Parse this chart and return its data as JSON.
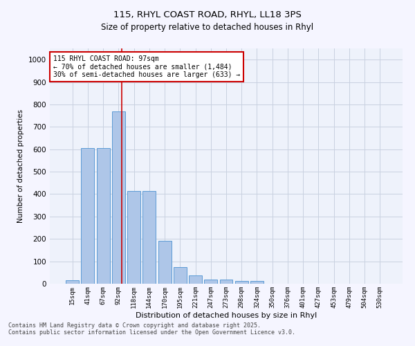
{
  "title_line1": "115, RHYL COAST ROAD, RHYL, LL18 3PS",
  "title_line2": "Size of property relative to detached houses in Rhyl",
  "xlabel": "Distribution of detached houses by size in Rhyl",
  "ylabel": "Number of detached properties",
  "categories": [
    "15sqm",
    "41sqm",
    "67sqm",
    "92sqm",
    "118sqm",
    "144sqm",
    "170sqm",
    "195sqm",
    "221sqm",
    "247sqm",
    "273sqm",
    "298sqm",
    "324sqm",
    "350sqm",
    "376sqm",
    "401sqm",
    "427sqm",
    "453sqm",
    "479sqm",
    "504sqm",
    "530sqm"
  ],
  "values": [
    15,
    605,
    605,
    770,
    415,
    415,
    190,
    75,
    38,
    18,
    18,
    13,
    13,
    0,
    0,
    0,
    0,
    0,
    0,
    0,
    0
  ],
  "bar_color": "#aec6e8",
  "bar_edge_color": "#5b9bd5",
  "annotation_text": "115 RHYL COAST ROAD: 97sqm\n← 70% of detached houses are smaller (1,484)\n30% of semi-detached houses are larger (633) →",
  "vline_x": 3.19,
  "vline_color": "#cc0000",
  "annotation_box_color": "#ffffff",
  "annotation_box_edge": "#cc0000",
  "grid_color": "#c8d0e0",
  "background_color": "#eef2fb",
  "fig_background_color": "#f5f5ff",
  "footer_text": "Contains HM Land Registry data © Crown copyright and database right 2025.\nContains public sector information licensed under the Open Government Licence v3.0.",
  "ylim": [
    0,
    1050
  ],
  "yticks": [
    0,
    100,
    200,
    300,
    400,
    500,
    600,
    700,
    800,
    900,
    1000
  ]
}
